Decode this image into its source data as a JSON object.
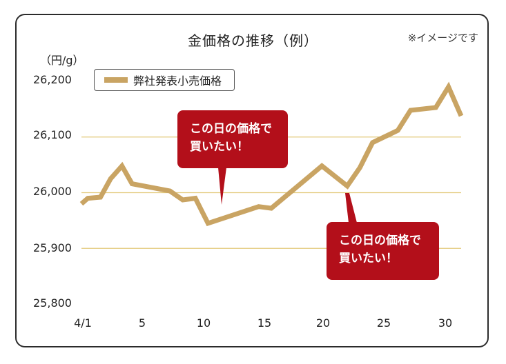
{
  "chart_data": {
    "type": "line",
    "title": "金価格の推移（例）",
    "note": "※イメージです",
    "ylabel": "（円/g）",
    "xlabel": "",
    "ylim": [
      25800,
      26200
    ],
    "xlim": [
      1,
      31
    ],
    "yticks": [
      "25,800",
      "25,900",
      "26,000",
      "26,100",
      "26,200"
    ],
    "ytick_values": [
      25800,
      25900,
      26000,
      26100,
      26200
    ],
    "xticks": [
      "4/1",
      "5",
      "10",
      "15",
      "20",
      "25",
      "30"
    ],
    "xtick_values": [
      1,
      5,
      10,
      15,
      20,
      25,
      30
    ],
    "gridlines": [
      25900,
      26000,
      26100
    ],
    "series": [
      {
        "name": "弊社発表小売価格",
        "color": "#c9a463",
        "x": [
          1,
          1.5,
          2.5,
          3.3,
          4.2,
          5,
          8,
          9,
          10,
          11,
          15,
          16,
          20,
          22,
          23,
          24,
          26,
          27,
          29,
          30,
          31
        ],
        "values": [
          25980,
          25990,
          25992,
          26025,
          26048,
          26016,
          26003,
          25987,
          25990,
          25945,
          25975,
          25972,
          26048,
          26012,
          26045,
          26090,
          26112,
          26148,
          26153,
          26190,
          26138
        ]
      }
    ],
    "legend": "top-left",
    "annotations": [
      {
        "lines": [
          "この日の価格で",
          "買いたい！"
        ],
        "x": 11
      },
      {
        "lines": [
          "この日の価格で",
          "買いたい！"
        ],
        "x": 22
      }
    ]
  }
}
